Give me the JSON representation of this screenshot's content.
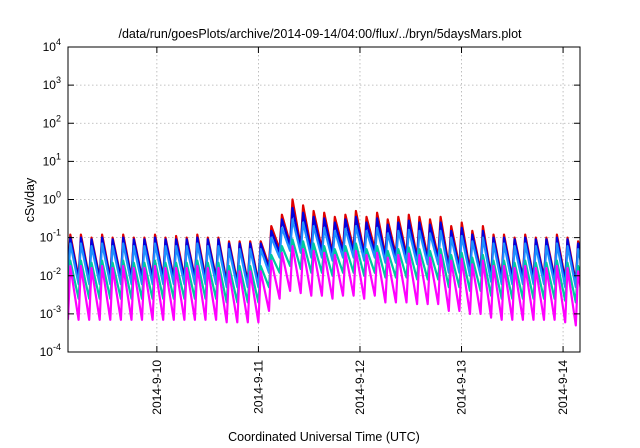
{
  "chart_data": {
    "type": "line",
    "title": "/data/run/goesPlots/archive/2014-09-14/04:00/flux/../bryn/5daysMars.plot",
    "xlabel": "Coordinated Universal Time (UTC)",
    "ylabel": "cSv/day",
    "yscale": "log",
    "ylim": [
      0.0001,
      10000
    ],
    "xlim": [
      "2014-09-09 03:00",
      "2014-09-14 04:00"
    ],
    "grid": true,
    "legend": "none",
    "y_ticks": [
      {
        "base": "10",
        "exp": "-4"
      },
      {
        "base": "10",
        "exp": "-3"
      },
      {
        "base": "10",
        "exp": "-2"
      },
      {
        "base": "10",
        "exp": "-1"
      },
      {
        "base": "10",
        "exp": "0"
      },
      {
        "base": "10",
        "exp": "1"
      },
      {
        "base": "10",
        "exp": "2"
      },
      {
        "base": "10",
        "exp": "3"
      },
      {
        "base": "10",
        "exp": "4"
      }
    ],
    "x_ticks": [
      "2014-9-10",
      "2014-9-11",
      "2014-9-12",
      "2014-9-13",
      "2014-9-14"
    ],
    "series": [
      {
        "color": "#e00000",
        "cycle_hours": 2.5,
        "peaks": [
          0.12,
          0.12,
          0.1,
          0.12,
          0.1,
          0.12,
          0.1,
          0.1,
          0.12,
          0.1,
          0.11,
          0.1,
          0.12,
          0.1,
          0.1,
          0.08,
          0.08,
          0.08,
          0.08,
          0.2,
          0.4,
          1.0,
          0.7,
          0.5,
          0.45,
          0.35,
          0.4,
          0.5,
          0.35,
          0.45,
          0.3,
          0.35,
          0.4,
          0.35,
          0.3,
          0.35,
          0.2,
          0.25,
          0.15,
          0.2,
          0.12,
          0.12,
          0.1,
          0.12,
          0.1,
          0.1,
          0.12,
          0.1,
          0.08
        ],
        "troughs": [
          0.009,
          0.009,
          0.009,
          0.009,
          0.009,
          0.009,
          0.009,
          0.009,
          0.009,
          0.009,
          0.009,
          0.009,
          0.009,
          0.009,
          0.009,
          0.007,
          0.007,
          0.007,
          0.007,
          0.018,
          0.05,
          0.07,
          0.06,
          0.05,
          0.05,
          0.04,
          0.05,
          0.05,
          0.04,
          0.05,
          0.035,
          0.035,
          0.035,
          0.03,
          0.03,
          0.03,
          0.018,
          0.018,
          0.014,
          0.014,
          0.01,
          0.009,
          0.009,
          0.009,
          0.009,
          0.009,
          0.009,
          0.008,
          0.007
        ]
      },
      {
        "color": "#0000e0",
        "cycle_hours": 2.5,
        "peaks": [
          0.1,
          0.1,
          0.09,
          0.1,
          0.09,
          0.1,
          0.09,
          0.09,
          0.1,
          0.09,
          0.09,
          0.09,
          0.1,
          0.09,
          0.09,
          0.07,
          0.07,
          0.07,
          0.07,
          0.15,
          0.3,
          0.6,
          0.45,
          0.35,
          0.32,
          0.25,
          0.3,
          0.35,
          0.25,
          0.32,
          0.22,
          0.25,
          0.28,
          0.25,
          0.22,
          0.25,
          0.15,
          0.18,
          0.12,
          0.15,
          0.1,
          0.1,
          0.09,
          0.1,
          0.09,
          0.09,
          0.1,
          0.09,
          0.07
        ],
        "troughs": [
          0.008,
          0.008,
          0.008,
          0.008,
          0.008,
          0.008,
          0.008,
          0.008,
          0.008,
          0.008,
          0.008,
          0.008,
          0.008,
          0.008,
          0.008,
          0.006,
          0.006,
          0.006,
          0.006,
          0.015,
          0.04,
          0.06,
          0.05,
          0.04,
          0.04,
          0.035,
          0.04,
          0.04,
          0.035,
          0.04,
          0.03,
          0.03,
          0.03,
          0.025,
          0.025,
          0.025,
          0.015,
          0.015,
          0.012,
          0.012,
          0.009,
          0.008,
          0.008,
          0.008,
          0.008,
          0.008,
          0.008,
          0.007,
          0.006
        ]
      },
      {
        "color": "#1e90ff",
        "cycle_hours": 2.5,
        "peaks": [
          0.07,
          0.07,
          0.06,
          0.07,
          0.06,
          0.07,
          0.06,
          0.06,
          0.07,
          0.06,
          0.06,
          0.06,
          0.07,
          0.06,
          0.06,
          0.05,
          0.05,
          0.05,
          0.05,
          0.1,
          0.18,
          0.3,
          0.25,
          0.2,
          0.18,
          0.15,
          0.17,
          0.2,
          0.15,
          0.18,
          0.13,
          0.15,
          0.16,
          0.15,
          0.13,
          0.15,
          0.1,
          0.11,
          0.08,
          0.1,
          0.07,
          0.07,
          0.06,
          0.07,
          0.06,
          0.06,
          0.07,
          0.06,
          0.05
        ],
        "troughs": [
          0.006,
          0.006,
          0.006,
          0.006,
          0.006,
          0.006,
          0.006,
          0.006,
          0.006,
          0.006,
          0.006,
          0.006,
          0.006,
          0.006,
          0.006,
          0.005,
          0.005,
          0.005,
          0.005,
          0.012,
          0.03,
          0.045,
          0.04,
          0.03,
          0.03,
          0.025,
          0.03,
          0.03,
          0.025,
          0.03,
          0.022,
          0.022,
          0.022,
          0.02,
          0.02,
          0.02,
          0.012,
          0.012,
          0.01,
          0.01,
          0.007,
          0.006,
          0.006,
          0.006,
          0.006,
          0.006,
          0.006,
          0.005,
          0.005
        ]
      },
      {
        "color": "#00c8a0",
        "cycle_hours": 2.5,
        "peaks": [
          0.025,
          0.025,
          0.022,
          0.025,
          0.022,
          0.025,
          0.022,
          0.022,
          0.025,
          0.022,
          0.022,
          0.022,
          0.025,
          0.022,
          0.022,
          0.018,
          0.018,
          0.018,
          0.018,
          0.035,
          0.06,
          0.09,
          0.08,
          0.07,
          0.06,
          0.05,
          0.06,
          0.07,
          0.05,
          0.06,
          0.045,
          0.05,
          0.055,
          0.05,
          0.045,
          0.05,
          0.035,
          0.04,
          0.03,
          0.035,
          0.025,
          0.025,
          0.022,
          0.025,
          0.022,
          0.022,
          0.025,
          0.022,
          0.018
        ],
        "troughs": [
          0.0025,
          0.0025,
          0.0025,
          0.0025,
          0.0025,
          0.0025,
          0.0025,
          0.0025,
          0.0025,
          0.0025,
          0.0025,
          0.0025,
          0.0025,
          0.0025,
          0.0025,
          0.002,
          0.002,
          0.002,
          0.002,
          0.005,
          0.012,
          0.018,
          0.015,
          0.012,
          0.012,
          0.01,
          0.012,
          0.012,
          0.01,
          0.012,
          0.009,
          0.009,
          0.009,
          0.008,
          0.008,
          0.008,
          0.005,
          0.005,
          0.004,
          0.004,
          0.003,
          0.0025,
          0.0025,
          0.0025,
          0.0025,
          0.0025,
          0.0025,
          0.0022,
          0.002
        ]
      },
      {
        "color": "#ff00ff",
        "cycle_hours": 2.5,
        "peaks": [
          0.018,
          0.018,
          0.016,
          0.018,
          0.016,
          0.018,
          0.016,
          0.016,
          0.018,
          0.016,
          0.016,
          0.016,
          0.018,
          0.016,
          0.016,
          0.013,
          0.013,
          0.013,
          0.013,
          0.025,
          0.04,
          0.06,
          0.05,
          0.045,
          0.04,
          0.035,
          0.04,
          0.045,
          0.035,
          0.04,
          0.03,
          0.035,
          0.038,
          0.035,
          0.03,
          0.035,
          0.025,
          0.028,
          0.02,
          0.025,
          0.018,
          0.018,
          0.016,
          0.018,
          0.016,
          0.016,
          0.018,
          0.016,
          0.013
        ],
        "troughs": [
          0.0007,
          0.0007,
          0.0007,
          0.0007,
          0.0007,
          0.0007,
          0.0007,
          0.0007,
          0.0007,
          0.0007,
          0.0007,
          0.0007,
          0.0007,
          0.0007,
          0.0007,
          0.0006,
          0.0006,
          0.0006,
          0.0006,
          0.0012,
          0.0025,
          0.004,
          0.0035,
          0.003,
          0.003,
          0.0025,
          0.003,
          0.003,
          0.0025,
          0.003,
          0.002,
          0.002,
          0.002,
          0.0018,
          0.0018,
          0.0018,
          0.0012,
          0.0012,
          0.001,
          0.001,
          0.0008,
          0.0007,
          0.0007,
          0.0007,
          0.0007,
          0.0007,
          0.0007,
          0.0006,
          0.0005
        ]
      }
    ]
  }
}
